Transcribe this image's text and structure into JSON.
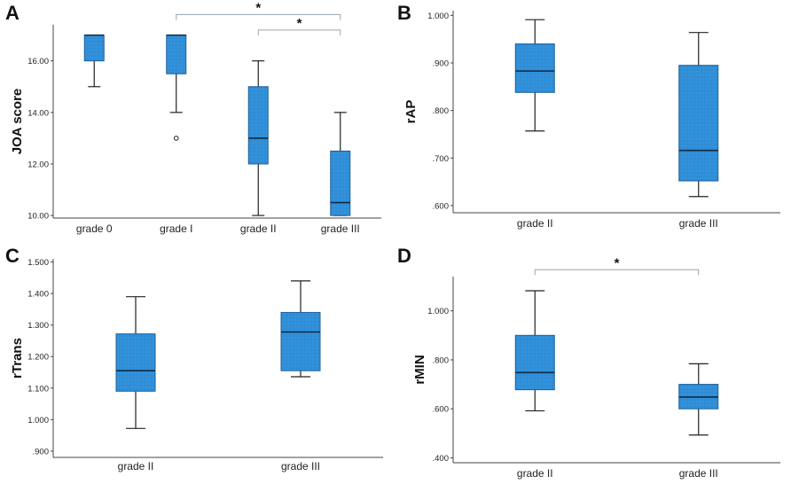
{
  "chart_data": [
    {
      "type": "box",
      "panel": "A",
      "ylabel": "JOA score",
      "categories": [
        "grade 0",
        "grade I",
        "grade II",
        "grade III"
      ],
      "yticks": [
        "10.00",
        "12.00",
        "14.00",
        "16.00"
      ],
      "ylim": [
        9.9,
        17.4
      ],
      "boxes": [
        {
          "whisker_low": 15,
          "q1": 16,
          "median": 17,
          "q3": 17,
          "whisker_high": 17,
          "outliers": []
        },
        {
          "whisker_low": 14,
          "q1": 15.5,
          "median": 17,
          "q3": 17,
          "whisker_high": 17,
          "outliers": [
            13
          ]
        },
        {
          "whisker_low": 10,
          "q1": 12,
          "median": 13,
          "q3": 15,
          "whisker_high": 16,
          "outliers": []
        },
        {
          "whisker_low": 10,
          "q1": 10,
          "median": 10.5,
          "q3": 12.5,
          "whisker_high": 14,
          "outliers": []
        }
      ],
      "significance": [
        {
          "from": 1,
          "to": 3,
          "label": "*",
          "level": 17.8
        },
        {
          "from": 2,
          "to": 3,
          "label": "*",
          "level": 17.2
        }
      ]
    },
    {
      "type": "box",
      "panel": "B",
      "ylabel": "rAP",
      "categories": [
        "grade II",
        "grade III"
      ],
      "yticks": [
        ".600",
        ".700",
        ".800",
        ".900",
        "1.000"
      ],
      "ylim": [
        0.585,
        1.01
      ],
      "boxes": [
        {
          "whisker_low": 0.757,
          "q1": 0.838,
          "median": 0.883,
          "q3": 0.94,
          "whisker_high": 0.991,
          "outliers": []
        },
        {
          "whisker_low": 0.619,
          "q1": 0.652,
          "median": 0.716,
          "q3": 0.895,
          "whisker_high": 0.964,
          "outliers": []
        }
      ],
      "significance": []
    },
    {
      "type": "box",
      "panel": "C",
      "ylabel": "rTrans",
      "categories": [
        "grade II",
        "grade III"
      ],
      "yticks": [
        ".900",
        "1.000",
        "1.100",
        "1.200",
        "1.300",
        "1.400",
        "1.500"
      ],
      "ylim": [
        0.88,
        1.51
      ],
      "boxes": [
        {
          "whisker_low": 0.972,
          "q1": 1.09,
          "median": 1.155,
          "q3": 1.272,
          "whisker_high": 1.39,
          "outliers": []
        },
        {
          "whisker_low": 1.136,
          "q1": 1.155,
          "median": 1.278,
          "q3": 1.34,
          "whisker_high": 1.44,
          "outliers": []
        }
      ],
      "significance": []
    },
    {
      "type": "box",
      "panel": "D",
      "ylabel": "rMIN",
      "categories": [
        "grade II",
        "grade III"
      ],
      "yticks": [
        ".400",
        ".600",
        ".800",
        "1.000"
      ],
      "ylim": [
        0.38,
        1.14
      ],
      "boxes": [
        {
          "whisker_low": 0.592,
          "q1": 0.678,
          "median": 0.748,
          "q3": 0.9,
          "whisker_high": 1.082,
          "outliers": []
        },
        {
          "whisker_low": 0.493,
          "q1": 0.6,
          "median": 0.648,
          "q3": 0.7,
          "whisker_high": 0.784,
          "outliers": []
        }
      ],
      "significance": [
        {
          "from": 0,
          "to": 1,
          "label": "*",
          "level": 1.168
        }
      ]
    }
  ],
  "colors": {
    "box_fill": "#2f8fd8",
    "box_edge": "#1d5f99",
    "median": "#0e2a44",
    "whisker": "#222222",
    "axis": "#444444",
    "bracket": "#9aa5b1"
  }
}
